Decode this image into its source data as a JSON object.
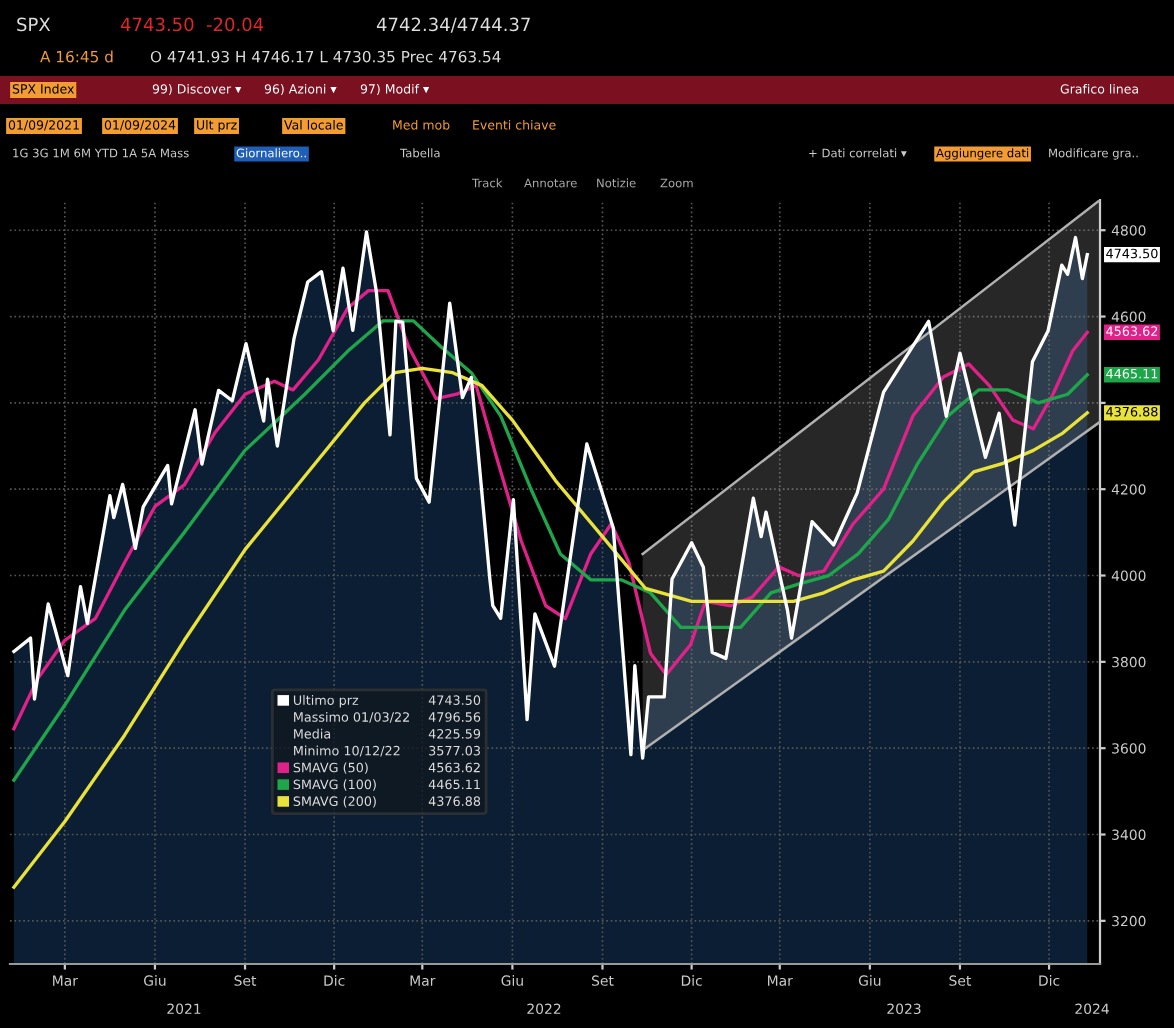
{
  "chart_data": {
    "type": "line",
    "annotations": [
      "SPX",
      "4743.50",
      "-20.04",
      "4742.34/4744.37",
      "A 16:45 d",
      "O 4741.93 H 4746.17 L 4730.35 Prec 4763.54",
      "SPX Index",
      "99) Discover ▾",
      "96) Azioni ▾",
      "97) Modif ▾",
      "Grafico linea",
      "01/09/2021",
      "01/09/2024",
      "Ult prz",
      "Val locale",
      "Med mob",
      "Eventi chiave",
      "1G 3G 1M 6M YTD 1A 5A Mass",
      "Giornaliero..",
      "Tabella",
      "+ Dati correlati ▾",
      "Aggiungere dati",
      "Modificare gra..",
      "Track",
      "Annotare",
      "Notizie",
      "Zoom",
      "Massimo 01/03/22",
      "4796.56",
      "Media",
      "4225.59",
      "Minimo 10/12/22",
      "3577.03",
      "2021",
      "2022",
      "2023",
      "2024"
    ],
    "xlim": [
      "2021-01-04",
      "2024-01-22"
    ],
    "ylim": [
      3100,
      4870
    ],
    "yticks": [
      3200,
      3400,
      3600,
      3800,
      4000,
      4200,
      {
        "value": 4400,
        "label": null
      },
      4600,
      4800
    ],
    "xticks": [
      {
        "value": "2021-03-01",
        "label": "Mar"
      },
      {
        "value": "2021-06-01",
        "label": "Giu"
      },
      {
        "value": "2021-09-01",
        "label": "Set"
      },
      {
        "value": "2021-12-01",
        "label": "Dic"
      },
      {
        "value": "2022-03-01",
        "label": "Mar"
      },
      {
        "value": "2022-06-01",
        "label": "Giu"
      },
      {
        "value": "2022-09-01",
        "label": "Set"
      },
      {
        "value": "2022-12-01",
        "label": "Dic"
      },
      {
        "value": "2023-03-01",
        "label": "Mar"
      },
      {
        "value": "2023-06-01",
        "label": "Giu"
      },
      {
        "value": "2023-09-01",
        "label": "Set"
      },
      {
        "value": "2023-12-01",
        "label": "Dic"
      }
    ],
    "grid": true,
    "legend": "bottom left",
    "series": [
      {
        "type": "area",
        "name": "Ultimo prz",
        "color": "#ffffff",
        "x": [
          "2021-01-08",
          "2021-01-25",
          "2021-01-29",
          "2021-02-12",
          "2021-03-04",
          "2021-03-17",
          "2021-03-24",
          "2021-04-16",
          "2021-04-20",
          "2021-04-29",
          "2021-05-12",
          "2021-05-20",
          "2021-06-14",
          "2021-06-18",
          "2021-07-12",
          "2021-07-19",
          "2021-08-05",
          "2021-08-19",
          "2021-09-02",
          "2021-09-20",
          "2021-09-24",
          "2021-10-04",
          "2021-10-21",
          "2021-11-04",
          "2021-11-18",
          "2021-11-30",
          "2021-12-10",
          "2021-12-20",
          "2022-01-03",
          "2022-01-13",
          "2022-01-27",
          "2022-02-02",
          "2022-02-09",
          "2022-02-23",
          "2022-03-08",
          "2022-03-29",
          "2022-04-11",
          "2022-04-20",
          "2022-05-09",
          "2022-05-12",
          "2022-05-20",
          "2022-06-02",
          "2022-06-16",
          "2022-06-24",
          "2022-07-14",
          "2022-08-16",
          "2022-09-12",
          "2022-09-30",
          "2022-10-04",
          "2022-10-12",
          "2022-10-18",
          "2022-11-03",
          "2022-11-11",
          "2022-12-01",
          "2022-12-13",
          "2022-12-22",
          "2023-01-05",
          "2023-02-02",
          "2023-02-10",
          "2023-02-15",
          "2023-03-09",
          "2023-03-13",
          "2023-04-03",
          "2023-04-25",
          "2023-05-19",
          "2023-06-15",
          "2023-07-31",
          "2023-08-18",
          "2023-09-01",
          "2023-09-27",
          "2023-10-11",
          "2023-10-27",
          "2023-11-14",
          "2023-11-30",
          "2023-12-14",
          "2023-12-20",
          "2023-12-28",
          "2024-01-04",
          "2024-01-09"
        ],
        "values": [
          3824,
          3855,
          3714,
          3934,
          3768,
          3974,
          3889,
          4185,
          4134,
          4211,
          4063,
          4159,
          4255,
          4166,
          4384,
          4258,
          4429,
          4405,
          4537,
          4358,
          4455,
          4300,
          4549,
          4680,
          4704,
          4567,
          4712,
          4568,
          4796,
          4659,
          4326,
          4589,
          4587,
          4225,
          4170,
          4631,
          4412,
          4459,
          3991,
          3930,
          3901,
          4176,
          3666,
          3911,
          3790,
          4305,
          4110,
          3585,
          3791,
          3577,
          3719,
          3719,
          3992,
          4076,
          4019,
          3822,
          3808,
          4179,
          4090,
          4147,
          3918,
          3855,
          4125,
          4071,
          4191,
          4425,
          4589,
          4369,
          4515,
          4274,
          4376,
          4117,
          4495,
          4567,
          4719,
          4698,
          4783,
          4688,
          4743.5
        ],
        "value_labels": [
          null,
          null,
          null,
          null,
          null,
          null,
          null,
          null,
          null,
          null,
          null,
          null,
          null,
          null,
          null,
          null,
          null,
          null,
          null,
          null,
          null,
          null,
          null,
          null,
          null,
          null,
          null,
          null,
          null,
          null,
          null,
          null,
          null,
          null,
          null,
          null,
          null,
          null,
          null,
          null,
          null,
          null,
          null,
          null,
          null,
          null,
          null,
          null,
          null,
          null,
          null,
          null,
          null,
          null,
          null,
          null,
          null,
          null,
          null,
          null,
          null,
          null,
          null,
          null,
          null,
          null,
          null,
          null,
          null,
          null,
          null,
          null,
          null,
          null,
          null,
          null,
          null,
          null,
          "4743.50"
        ]
      },
      {
        "name": "SMAVG (50)",
        "color": "#e0218a",
        "x": [
          "2021-01-08",
          "2021-02-01",
          "2021-03-01",
          "2021-04-01",
          "2021-05-01",
          "2021-06-01",
          "2021-07-01",
          "2021-08-01",
          "2021-09-01",
          "2021-10-01",
          "2021-10-20",
          "2021-11-15",
          "2021-12-15",
          "2022-01-05",
          "2022-01-25",
          "2022-02-15",
          "2022-03-15",
          "2022-04-05",
          "2022-04-25",
          "2022-05-15",
          "2022-06-10",
          "2022-07-05",
          "2022-07-25",
          "2022-08-20",
          "2022-09-10",
          "2022-09-28",
          "2022-10-20",
          "2022-11-05",
          "2022-11-30",
          "2022-12-15",
          "2023-01-10",
          "2023-02-01",
          "2023-02-28",
          "2023-03-20",
          "2023-04-15",
          "2023-05-15",
          "2023-06-15",
          "2023-07-15",
          "2023-08-15",
          "2023-09-10",
          "2023-10-01",
          "2023-10-25",
          "2023-11-15",
          "2023-12-05",
          "2023-12-25",
          "2024-01-09"
        ],
        "values": [
          3645,
          3760,
          3850,
          3900,
          4030,
          4160,
          4210,
          4330,
          4420,
          4450,
          4430,
          4500,
          4620,
          4660,
          4660,
          4530,
          4410,
          4420,
          4440,
          4280,
          4080,
          3930,
          3900,
          4050,
          4120,
          4030,
          3820,
          3770,
          3840,
          3940,
          3930,
          3950,
          4020,
          4000,
          4010,
          4120,
          4200,
          4370,
          4460,
          4490,
          4440,
          4360,
          4340,
          4420,
          4520,
          4563.62
        ],
        "value_labels": [
          null,
          null,
          null,
          null,
          null,
          null,
          null,
          null,
          null,
          null,
          null,
          null,
          null,
          null,
          null,
          null,
          null,
          null,
          null,
          null,
          null,
          null,
          null,
          null,
          null,
          null,
          null,
          null,
          null,
          null,
          null,
          null,
          null,
          null,
          null,
          null,
          null,
          null,
          null,
          null,
          null,
          null,
          null,
          null,
          null,
          "4563.62"
        ]
      },
      {
        "name": "SMAVG (100)",
        "color": "#1fa64a",
        "x": [
          "2021-01-08",
          "2021-03-01",
          "2021-05-01",
          "2021-07-01",
          "2021-09-01",
          "2021-11-01",
          "2021-12-15",
          "2022-01-20",
          "2022-02-20",
          "2022-03-20",
          "2022-04-20",
          "2022-05-20",
          "2022-06-20",
          "2022-07-20",
          "2022-08-20",
          "2022-09-20",
          "2022-10-20",
          "2022-11-20",
          "2022-12-20",
          "2023-01-20",
          "2023-02-20",
          "2023-03-20",
          "2023-04-20",
          "2023-05-20",
          "2023-06-20",
          "2023-07-20",
          "2023-08-20",
          "2023-09-20",
          "2023-10-20",
          "2023-11-20",
          "2023-12-20",
          "2024-01-09"
        ],
        "values": [
          3526,
          3700,
          3920,
          4100,
          4290,
          4420,
          4520,
          4590,
          4590,
          4530,
          4470,
          4370,
          4200,
          4050,
          3990,
          3990,
          3960,
          3880,
          3880,
          3880,
          3960,
          3980,
          4000,
          4050,
          4130,
          4260,
          4370,
          4430,
          4430,
          4400,
          4420,
          4465.11
        ],
        "value_labels": [
          null,
          null,
          null,
          null,
          null,
          null,
          null,
          null,
          null,
          null,
          null,
          null,
          null,
          null,
          null,
          null,
          null,
          null,
          null,
          null,
          null,
          null,
          null,
          null,
          null,
          null,
          null,
          null,
          null,
          null,
          null,
          "4465.11"
        ]
      },
      {
        "name": "SMAVG (200)",
        "color": "#e8e23a",
        "x": [
          "2021-01-08",
          "2021-03-01",
          "2021-05-01",
          "2021-07-01",
          "2021-09-01",
          "2021-11-01",
          "2022-01-01",
          "2022-02-01",
          "2022-03-01",
          "2022-04-01",
          "2022-05-01",
          "2022-06-01",
          "2022-07-15",
          "2022-09-01",
          "2022-10-15",
          "2022-12-01",
          "2023-01-15",
          "2023-02-15",
          "2023-03-15",
          "2023-04-15",
          "2023-05-15",
          "2023-06-15",
          "2023-07-15",
          "2023-08-15",
          "2023-09-15",
          "2023-10-15",
          "2023-11-15",
          "2023-12-15",
          "2024-01-09"
        ],
        "values": [
          3278,
          3430,
          3630,
          3850,
          4060,
          4230,
          4400,
          4470,
          4480,
          4470,
          4440,
          4360,
          4220,
          4090,
          3970,
          3940,
          3940,
          3940,
          3940,
          3960,
          3990,
          4010,
          4080,
          4170,
          4240,
          4260,
          4290,
          4330,
          4376.88
        ],
        "value_labels": [
          null,
          null,
          null,
          null,
          null,
          null,
          null,
          null,
          null,
          null,
          null,
          null,
          null,
          null,
          null,
          null,
          null,
          null,
          null,
          null,
          null,
          null,
          null,
          null,
          null,
          null,
          null,
          null,
          "4376.88"
        ]
      },
      {
        "color": "#b0b0b0",
        "x": [
          "2022-10-12",
          "2024-01-22"
        ],
        "values": [
          4050,
          4870
        ]
      },
      {
        "color": "#b0b0b0",
        "x": [
          "2022-10-12",
          "2024-01-22"
        ],
        "values": [
          3595,
          4356
        ]
      }
    ]
  }
}
